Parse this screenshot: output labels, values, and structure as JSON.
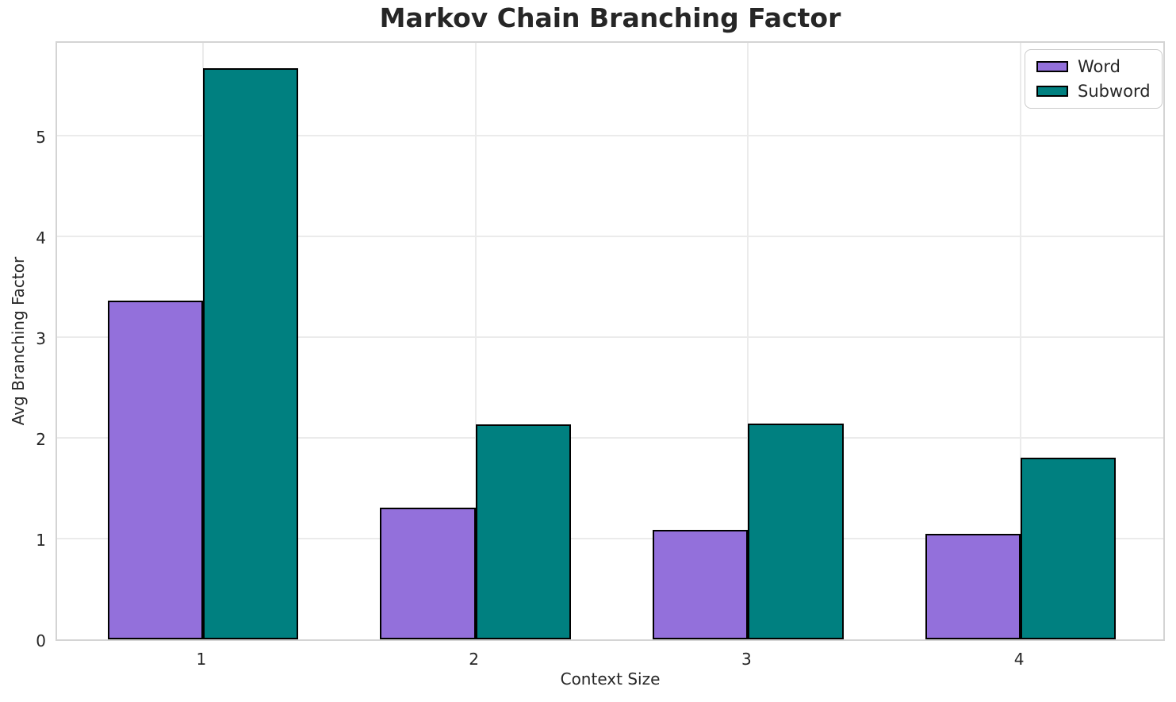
{
  "chart_data": {
    "type": "bar",
    "title": "Markov Chain Branching Factor",
    "xlabel": "Context Size",
    "ylabel": "Avg Branching Factor",
    "categories": [
      "1",
      "2",
      "3",
      "4"
    ],
    "series": [
      {
        "name": "Word",
        "color": "#9370DB",
        "values": [
          3.36,
          1.31,
          1.09,
          1.05
        ]
      },
      {
        "name": "Subword",
        "color": "#008080",
        "values": [
          5.67,
          2.13,
          2.14,
          1.8
        ]
      }
    ],
    "bar_edge_color": "#000000",
    "bar_width_data_units": 0.35,
    "xlim": [
      0.465,
      4.535
    ],
    "ylim": [
      0,
      5.95
    ],
    "yticks": [
      "0",
      "1",
      "2",
      "3",
      "4",
      "5"
    ],
    "grid": "on",
    "legend_position": "upper right"
  },
  "colors": {
    "grid_line": "#ebebeb",
    "spine": "#d4d4d4",
    "text": "#262626",
    "background": "#ffffff"
  }
}
